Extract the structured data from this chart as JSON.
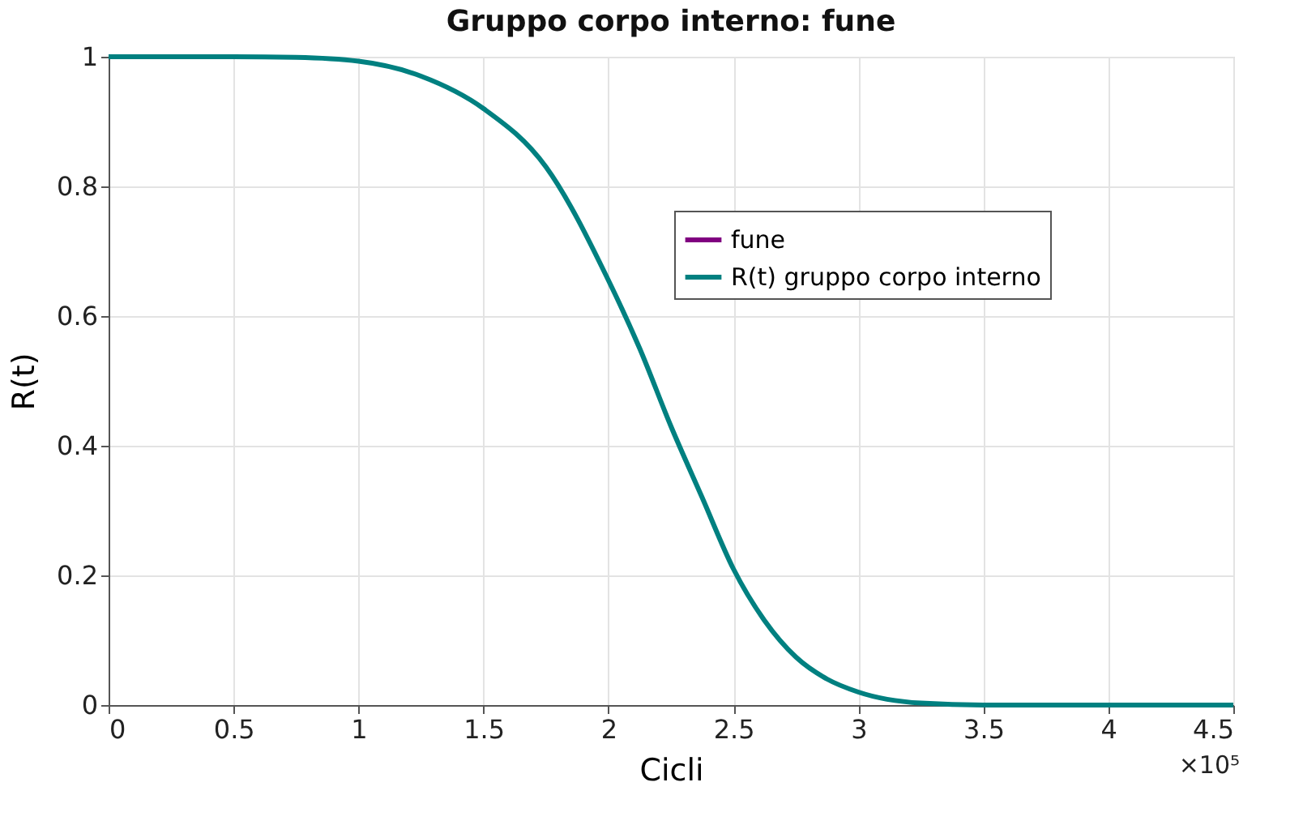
{
  "chart_data": {
    "type": "line",
    "title": "Gruppo corpo interno: fune",
    "xlabel": "Cicli",
    "ylabel": "R(t)",
    "x": [
      0,
      0.25,
      0.5,
      0.75,
      1,
      1.25,
      1.5,
      1.75,
      2,
      2.125,
      2.25,
      2.375,
      2.5,
      2.625,
      2.75,
      2.875,
      3,
      3.25,
      3.5,
      4,
      4.5
    ],
    "series": [
      {
        "name": "fune",
        "color": "#800080",
        "values": [
          null,
          null,
          null,
          null,
          null,
          null,
          null,
          null,
          null,
          null,
          null,
          null,
          null,
          null,
          null,
          null,
          null,
          null,
          null,
          null,
          null
        ]
      },
      {
        "name": "R(t) gruppo corpo interno",
        "color": "#008080",
        "values": [
          1,
          1,
          1,
          0.999,
          0.993,
          0.97,
          0.92,
          0.83,
          0.655,
          0.55,
          0.43,
          0.32,
          0.21,
          0.13,
          0.074,
          0.04,
          0.02,
          0.003,
          0,
          0,
          0
        ]
      }
    ],
    "xlim": [
      0,
      4.5
    ],
    "xticks": [
      0,
      0.5,
      1,
      1.5,
      2,
      2.5,
      3,
      3.5,
      4,
      4.5
    ],
    "ylim": [
      0,
      1
    ],
    "yticks": [
      0,
      0.2,
      0.4,
      0.6,
      0.8,
      1
    ],
    "annotations": [
      "×10⁵"
    ],
    "grid": true,
    "legend": "top right",
    "marker": "none",
    "line_style": "solid"
  }
}
